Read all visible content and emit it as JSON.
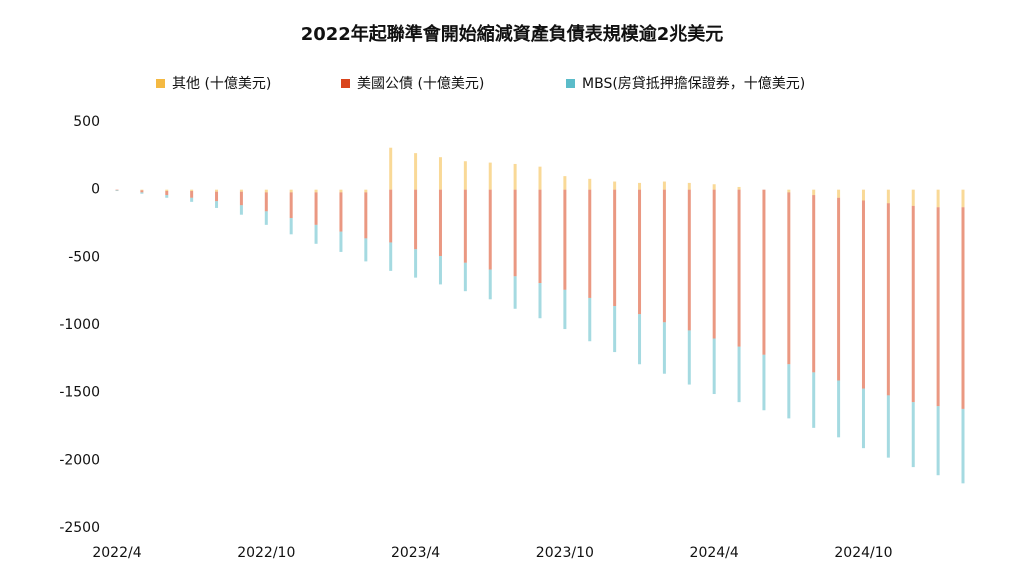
{
  "chart_data": {
    "type": "bar",
    "stacked": true,
    "title": "2022年起聯準會開始縮減資產負債表規模逾2兆美元",
    "categories": [
      "2022/4",
      null,
      null,
      null,
      null,
      null,
      "2022/10",
      null,
      null,
      null,
      null,
      null,
      "2023/4",
      null,
      null,
      null,
      null,
      null,
      "2023/10",
      null,
      null,
      null,
      null,
      null,
      "2024/4",
      null,
      null,
      null,
      null,
      null,
      "2024/10",
      null,
      null,
      null,
      null
    ],
    "series": [
      {
        "name": "其他 (十億美元)",
        "color": "#f4b942",
        "values": [
          0,
          -5,
          -10,
          -10,
          -15,
          -15,
          -20,
          -20,
          -20,
          -20,
          -20,
          310,
          270,
          240,
          210,
          200,
          190,
          170,
          100,
          80,
          60,
          50,
          60,
          50,
          40,
          20,
          0,
          -20,
          -40,
          -60,
          -80,
          -100,
          -120,
          -130,
          -130
        ]
      },
      {
        "name": "美國公債 (十億美元)",
        "color": "#d9441c",
        "values": [
          -5,
          -15,
          -30,
          -50,
          -70,
          -100,
          -140,
          -190,
          -240,
          -290,
          -340,
          -390,
          -440,
          -490,
          -540,
          -590,
          -640,
          -690,
          -740,
          -800,
          -860,
          -920,
          -980,
          -1040,
          -1100,
          -1160,
          -1220,
          -1270,
          -1310,
          -1350,
          -1390,
          -1420,
          -1450,
          -1470,
          -1490
        ]
      },
      {
        "name": "MBS(房貸抵押擔保證券，十億美元)",
        "color": "#5bbcc9",
        "values": [
          -5,
          -10,
          -20,
          -30,
          -50,
          -70,
          -100,
          -120,
          -140,
          -150,
          -170,
          -210,
          -210,
          -210,
          -210,
          -220,
          -240,
          -260,
          -290,
          -320,
          -340,
          -370,
          -380,
          -400,
          -410,
          -410,
          -410,
          -400,
          -410,
          -420,
          -440,
          -460,
          -480,
          -510,
          -550
        ]
      }
    ],
    "ylim": [
      -2500,
      500
    ],
    "yticks": [
      500,
      0,
      -500,
      -1000,
      -1500,
      -2000,
      -2500
    ]
  }
}
